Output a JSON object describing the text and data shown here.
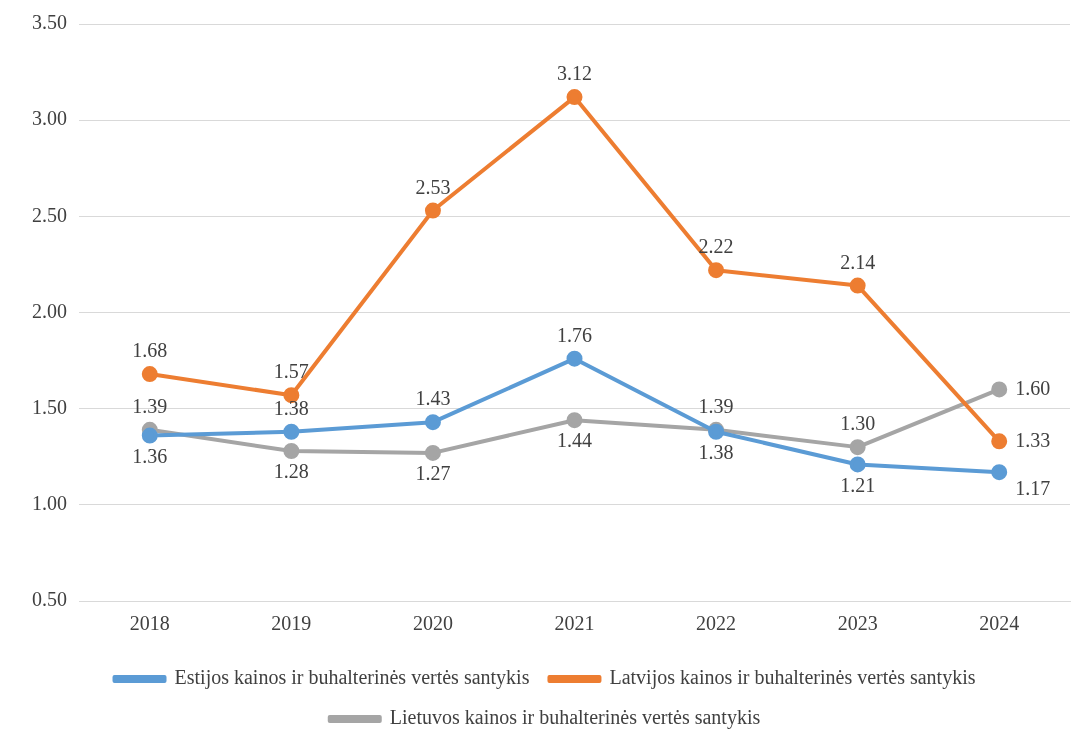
{
  "chart_data": {
    "type": "line",
    "categories": [
      "2018",
      "2019",
      "2020",
      "2021",
      "2022",
      "2023",
      "2024"
    ],
    "series": [
      {
        "name": "Estijos kainos ir buhalterinės vertės santykis",
        "color": "#5b9bd5",
        "values": [
          1.36,
          1.38,
          1.43,
          1.76,
          1.38,
          1.21,
          1.17
        ],
        "value_labels": [
          "1.36",
          "1.38",
          "1.43",
          "1.76",
          "1.38",
          "1.21",
          "1.17"
        ]
      },
      {
        "name": "Latvijos kainos ir buhalterinės vertės santykis",
        "color": "#ed7d31",
        "values": [
          1.68,
          1.57,
          2.53,
          3.12,
          2.22,
          2.14,
          1.33
        ],
        "value_labels": [
          "1.68",
          "1.57",
          "2.53",
          "3.12",
          "2.22",
          "2.14",
          "1.33"
        ]
      },
      {
        "name": "Lietuvos kainos ir buhalterinės vertės santykis",
        "color": "#a5a5a5",
        "values": [
          1.39,
          1.28,
          1.27,
          1.44,
          1.39,
          1.3,
          1.6
        ],
        "value_labels": [
          "1.39",
          "1.28",
          "1.27",
          "1.44",
          "1.39",
          "1.30",
          "1.60"
        ]
      }
    ],
    "ylim": [
      0.5,
      3.5
    ],
    "yticks": [
      {
        "value": 0.5,
        "label": "0.50"
      },
      {
        "value": 1,
        "label": "1.00"
      },
      {
        "value": 1.5,
        "label": "1.50"
      },
      {
        "value": 2,
        "label": "2.00"
      },
      {
        "value": 2.5,
        "label": "2.50"
      },
      {
        "value": 3,
        "label": "3.00"
      },
      {
        "value": 3.5,
        "label": "3.50"
      }
    ],
    "grid": "y",
    "legend": "bottom",
    "marker": "circle",
    "line_style": "solid"
  }
}
